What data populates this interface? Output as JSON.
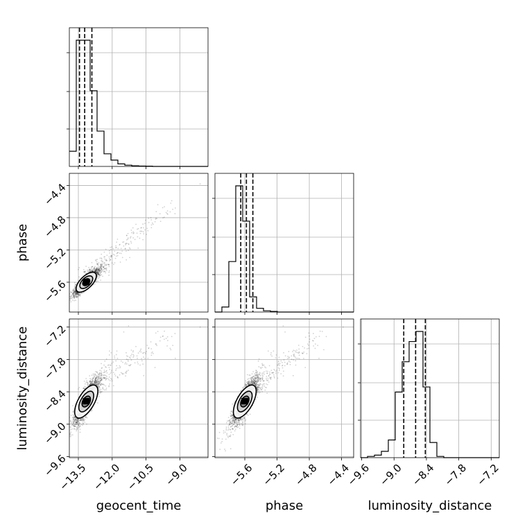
{
  "chart_data": {
    "type": "corner",
    "parameters": [
      "geocent_time",
      "phase",
      "luminosity_distance"
    ],
    "axis_labels": {
      "x": [
        "geocent_time",
        "phase",
        "luminosity_distance"
      ],
      "y": [
        "",
        "phase",
        "luminosity_distance"
      ]
    },
    "ranges": {
      "geocent_time": [
        -13.9,
        -7.75
      ],
      "phase": [
        -5.97,
        -4.25
      ],
      "luminosity_distance": [
        -9.62,
        -7.05
      ]
    },
    "tick_labels": {
      "geocent_time": [
        "−13.5",
        "−12.0",
        "−10.5",
        "−9.0"
      ],
      "phase": [
        "−5.6",
        "−5.2",
        "−4.8",
        "−4.4"
      ],
      "luminosity_distance": [
        "−9.6",
        "−9.0",
        "−8.4",
        "−7.8",
        "−7.2"
      ]
    },
    "tick_values": {
      "geocent_time": [
        -13.5,
        -12.0,
        -10.5,
        -9.0
      ],
      "phase": [
        -5.6,
        -5.2,
        -4.8,
        -4.4
      ],
      "luminosity_distance": [
        -9.6,
        -9.0,
        -8.4,
        -7.8,
        -7.2
      ]
    },
    "histograms": {
      "geocent_time": {
        "bin_start": -13.9,
        "bin_width": 0.3075,
        "counts": [
          0.12,
          1.0,
          1.0,
          0.6,
          0.28,
          0.1,
          0.05,
          0.02,
          0.01,
          0.005,
          0.003,
          0.002,
          0,
          0,
          0,
          0,
          0,
          0,
          0,
          0
        ]
      },
      "phase": {
        "bin_start": -5.97,
        "bin_width": 0.086,
        "counts": [
          0.0,
          0.04,
          0.4,
          1.0,
          0.72,
          0.12,
          0.03,
          0.01,
          0.005,
          0,
          0,
          0,
          0,
          0,
          0,
          0,
          0,
          0,
          0,
          0
        ]
      },
      "luminosity_distance": {
        "bin_start": -9.62,
        "bin_width": 0.1285,
        "counts": [
          0.0,
          0.01,
          0.02,
          0.05,
          0.14,
          0.52,
          0.76,
          0.92,
          1.0,
          0.56,
          0.12,
          0.01,
          0,
          0,
          0,
          0,
          0,
          0,
          0,
          0
        ]
      }
    },
    "quantiles": {
      "geocent_time": [
        -13.45,
        -13.22,
        -12.9
      ],
      "phase": [
        -5.65,
        -5.58,
        -5.5
      ],
      "luminosity_distance": [
        -8.82,
        -8.6,
        -8.42
      ]
    },
    "samples": {
      "geocent_time_mean": -13.15,
      "phase_mean": -5.6,
      "luminosity_distance_mean": -8.58,
      "correlation": 0.8,
      "n_points": 2600,
      "tail_points": [
        [
          -8.1,
          -4.38,
          -7.2
        ],
        [
          -9.4,
          -4.62,
          -7.62
        ],
        [
          -9.2,
          -4.68,
          -7.78
        ],
        [
          -10.1,
          -4.85,
          -7.95
        ],
        [
          -10.6,
          -5.0,
          -8.1
        ]
      ]
    },
    "grid": true,
    "colors": {
      "line": "#000000",
      "points": "#000000",
      "grid": "#b0b0b0"
    }
  }
}
